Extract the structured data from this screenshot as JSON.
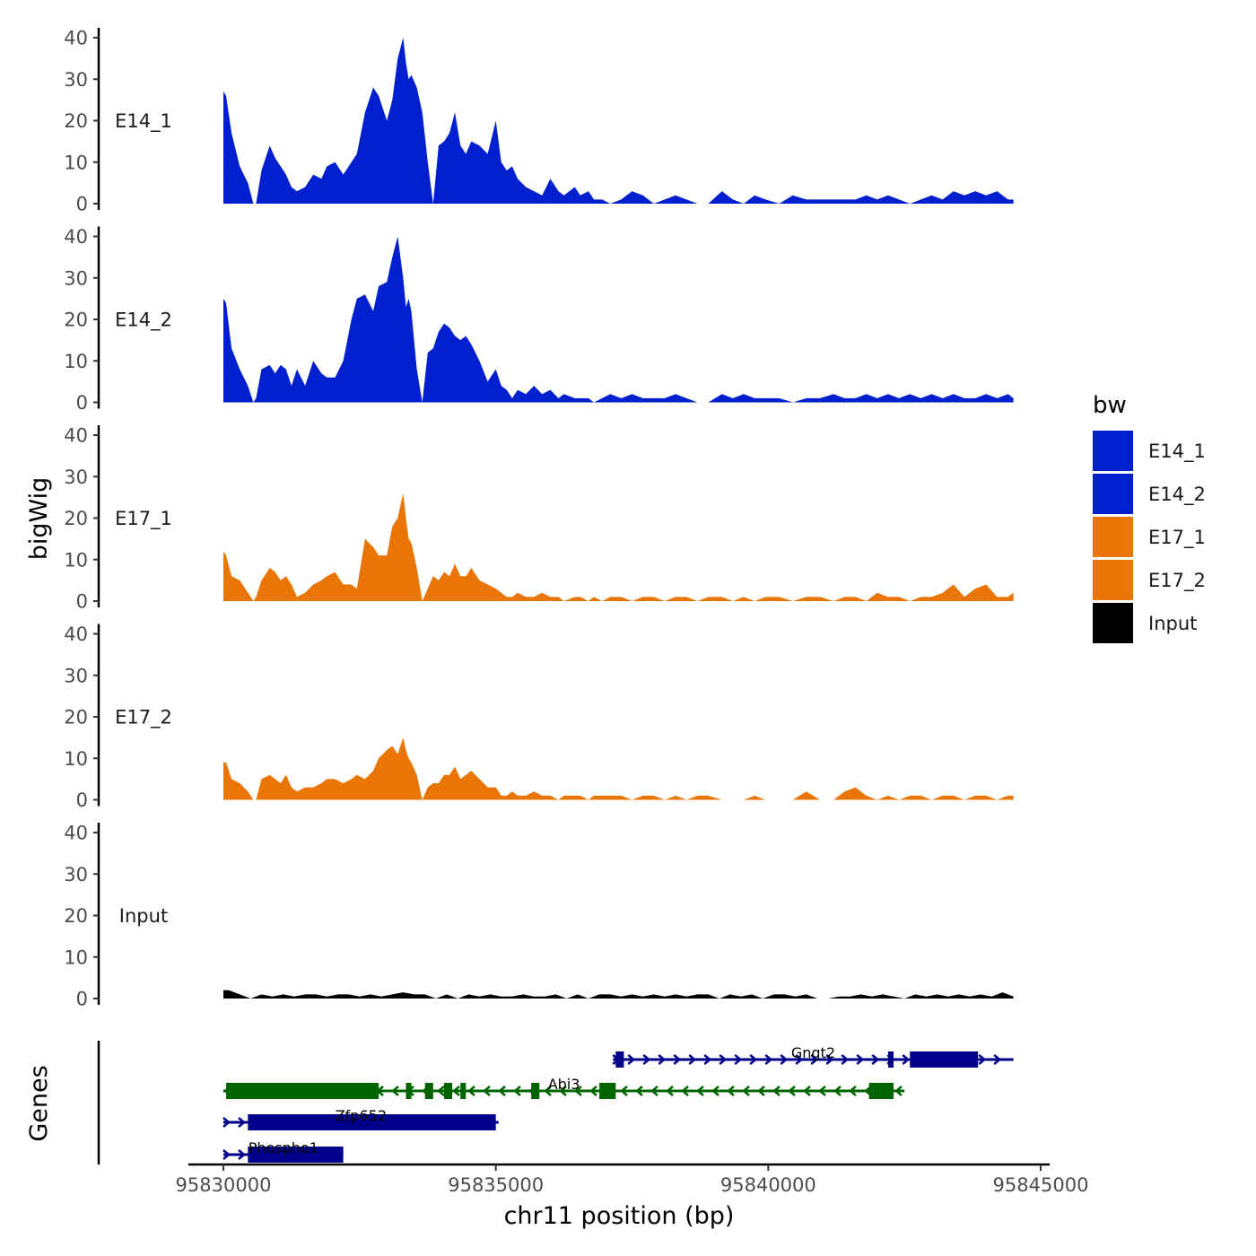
{
  "chart_data": {
    "type": "area",
    "ylabel": "bigWig",
    "xlabel": "chr11 position (bp)",
    "genes_label": "Genes",
    "ylim": [
      0,
      40
    ],
    "y_ticks": [
      "0",
      "10",
      "20",
      "30",
      "40"
    ],
    "xlim": [
      95829000,
      95845000
    ],
    "x_ticks": [
      95830000,
      95835000,
      95840000,
      95845000
    ],
    "x_tick_labels": [
      "95830000",
      "95835000",
      "95840000",
      "95845000"
    ],
    "legend": {
      "title": "bw",
      "position": "right",
      "entries": [
        {
          "label": "E14_1",
          "color": "#0020D0"
        },
        {
          "label": "E14_2",
          "color": "#0020D0"
        },
        {
          "label": "E17_1",
          "color": "#E87504"
        },
        {
          "label": "E17_2",
          "color": "#E87504"
        },
        {
          "label": "Input",
          "color": "#000000"
        }
      ]
    },
    "tracks": [
      {
        "name": "E14_1",
        "color": "#0020D0",
        "x": [
          95830000,
          95830050,
          95830150,
          95830300,
          95830450,
          95830550,
          95830600,
          95830700,
          95830850,
          95830950,
          95831050,
          95831150,
          95831250,
          95831350,
          95831500,
          95831650,
          95831800,
          95831900,
          95832050,
          95832200,
          95832350,
          95832450,
          95832600,
          95832750,
          95832850,
          95833000,
          95833100,
          95833200,
          95833300,
          95833350,
          95833400,
          95833450,
          95833550,
          95833650,
          95833750,
          95833850,
          95833950,
          95834050,
          95834150,
          95834250,
          95834350,
          95834450,
          95834550,
          95834700,
          95834850,
          95835000,
          95835100,
          95835200,
          95835300,
          95835400,
          95835550,
          95835700,
          95835850,
          95836000,
          95836150,
          95836250,
          95836450,
          95836550,
          95836700,
          95836800,
          95836950,
          95837100,
          95837300,
          95837500,
          95837700,
          95837900,
          95838100,
          95838300,
          95838500,
          95838700,
          95838900,
          95839150,
          95839350,
          95839550,
          95839750,
          95839950,
          95840200,
          95840450,
          95840700,
          95840950,
          95841200,
          95841400,
          95841600,
          95841800,
          95842000,
          95842200,
          95842400,
          95842600,
          95842800,
          95843000,
          95843200,
          95843400,
          95843600,
          95843800,
          95844000,
          95844200,
          95844400,
          95844500
        ],
        "y": [
          27,
          26,
          17,
          9,
          5,
          0,
          0,
          8,
          14,
          11,
          9,
          7,
          4,
          3,
          4,
          7,
          6,
          9,
          10,
          7,
          10,
          12,
          22,
          28,
          26,
          20,
          25,
          35,
          40,
          34,
          30,
          31,
          28,
          22,
          10,
          0,
          14,
          15,
          17,
          22,
          14,
          12,
          15,
          14,
          12,
          20,
          10,
          8,
          9,
          6,
          4,
          3,
          2,
          6,
          3,
          2,
          4,
          2,
          3,
          1,
          1,
          0,
          1,
          3,
          2,
          0,
          1,
          2,
          1,
          0,
          0,
          3,
          1,
          0,
          2,
          1,
          0,
          2,
          1,
          1,
          1,
          1,
          1,
          2,
          1,
          2,
          1,
          0,
          1,
          2,
          1,
          3,
          2,
          3,
          2,
          3,
          1,
          1
        ]
      },
      {
        "name": "E14_2",
        "color": "#0020D0",
        "x": [
          95830000,
          95830050,
          95830150,
          95830300,
          95830450,
          95830550,
          95830600,
          95830700,
          95830850,
          95830950,
          95831050,
          95831150,
          95831250,
          95831350,
          95831500,
          95831650,
          95831800,
          95831900,
          95832050,
          95832200,
          95832350,
          95832450,
          95832600,
          95832750,
          95832850,
          95833000,
          95833100,
          95833200,
          95833300,
          95833350,
          95833400,
          95833450,
          95833550,
          95833650,
          95833750,
          95833850,
          95833950,
          95834050,
          95834150,
          95834250,
          95834350,
          95834450,
          95834550,
          95834700,
          95834850,
          95835000,
          95835100,
          95835200,
          95835300,
          95835400,
          95835550,
          95835700,
          95835850,
          95836000,
          95836150,
          95836250,
          95836450,
          95836550,
          95836700,
          95836800,
          95836950,
          95837100,
          95837300,
          95837500,
          95837700,
          95837900,
          95838100,
          95838300,
          95838500,
          95838700,
          95838900,
          95839150,
          95839350,
          95839550,
          95839750,
          95839950,
          95840200,
          95840450,
          95840700,
          95840950,
          95841200,
          95841400,
          95841600,
          95841800,
          95842000,
          95842200,
          95842400,
          95842600,
          95842800,
          95843000,
          95843200,
          95843400,
          95843600,
          95843800,
          95844000,
          95844200,
          95844400,
          95844500
        ],
        "y": [
          25,
          24,
          13,
          8,
          4,
          0,
          1,
          8,
          9,
          7,
          9,
          8,
          4,
          8,
          4,
          10,
          7,
          6,
          6,
          10,
          20,
          25,
          26,
          22,
          28,
          29,
          35,
          40,
          30,
          23,
          25,
          22,
          8,
          0,
          12,
          13,
          17,
          19,
          18,
          16,
          15,
          16,
          14,
          10,
          5,
          8,
          4,
          3,
          1,
          3,
          2,
          4,
          2,
          3,
          1,
          2,
          1,
          1,
          1,
          0,
          1,
          2,
          1,
          2,
          1,
          1,
          1,
          2,
          1,
          0,
          0,
          2,
          1,
          2,
          1,
          1,
          1,
          0,
          1,
          1,
          2,
          1,
          1,
          2,
          1,
          2,
          1,
          2,
          1,
          2,
          1,
          2,
          1,
          1,
          2,
          1,
          2,
          1
        ]
      },
      {
        "name": "E17_1",
        "color": "#E87504",
        "x": [
          95830000,
          95830050,
          95830150,
          95830300,
          95830450,
          95830550,
          95830600,
          95830700,
          95830850,
          95830950,
          95831050,
          95831150,
          95831250,
          95831350,
          95831500,
          95831650,
          95831800,
          95831900,
          95832050,
          95832200,
          95832350,
          95832450,
          95832600,
          95832750,
          95832850,
          95833000,
          95833100,
          95833200,
          95833300,
          95833350,
          95833400,
          95833450,
          95833550,
          95833650,
          95833750,
          95833850,
          95833950,
          95834050,
          95834150,
          95834250,
          95834350,
          95834450,
          95834550,
          95834700,
          95834850,
          95835000,
          95835100,
          95835200,
          95835300,
          95835400,
          95835550,
          95835700,
          95835850,
          95836000,
          95836150,
          95836250,
          95836450,
          95836550,
          95836700,
          95836800,
          95836950,
          95837100,
          95837300,
          95837500,
          95837700,
          95837900,
          95838100,
          95838300,
          95838500,
          95838700,
          95838900,
          95839150,
          95839350,
          95839550,
          95839750,
          95839950,
          95840200,
          95840450,
          95840700,
          95840950,
          95841200,
          95841400,
          95841600,
          95841800,
          95842000,
          95842200,
          95842400,
          95842600,
          95842800,
          95843000,
          95843200,
          95843400,
          95843600,
          95843800,
          95844000,
          95844200,
          95844400,
          95844500
        ],
        "y": [
          12,
          11,
          6,
          5,
          2,
          0,
          1,
          5,
          8,
          7,
          5,
          6,
          4,
          1,
          2,
          4,
          5,
          6,
          7,
          4,
          4,
          3,
          15,
          13,
          11,
          11,
          18,
          20,
          26,
          20,
          15,
          14,
          8,
          0,
          3,
          6,
          5,
          7,
          6,
          9,
          6,
          6,
          8,
          5,
          4,
          3,
          2,
          1,
          1,
          2,
          1,
          1,
          2,
          1,
          1,
          0,
          1,
          1,
          0,
          1,
          0,
          1,
          1,
          0,
          1,
          1,
          0,
          1,
          1,
          0,
          1,
          1,
          0,
          1,
          0,
          1,
          1,
          0,
          1,
          1,
          0,
          1,
          1,
          0,
          2,
          1,
          1,
          0,
          1,
          1,
          2,
          4,
          1,
          3,
          4,
          1,
          1,
          2
        ]
      },
      {
        "name": "E17_2",
        "color": "#E87504",
        "x": [
          95830000,
          95830050,
          95830150,
          95830300,
          95830450,
          95830550,
          95830600,
          95830700,
          95830850,
          95830950,
          95831050,
          95831150,
          95831250,
          95831350,
          95831500,
          95831650,
          95831800,
          95831900,
          95832050,
          95832200,
          95832350,
          95832450,
          95832600,
          95832750,
          95832850,
          95833000,
          95833100,
          95833200,
          95833300,
          95833350,
          95833400,
          95833450,
          95833550,
          95833650,
          95833750,
          95833850,
          95833950,
          95834050,
          95834150,
          95834250,
          95834350,
          95834450,
          95834550,
          95834700,
          95834850,
          95835000,
          95835100,
          95835200,
          95835300,
          95835400,
          95835550,
          95835700,
          95835850,
          95836000,
          95836150,
          95836250,
          95836450,
          95836550,
          95836700,
          95836800,
          95836950,
          95837100,
          95837300,
          95837500,
          95837700,
          95837900,
          95838100,
          95838300,
          95838500,
          95838700,
          95838900,
          95839150,
          95839350,
          95839550,
          95839750,
          95839950,
          95840200,
          95840450,
          95840700,
          95840950,
          95841200,
          95841400,
          95841600,
          95841800,
          95842000,
          95842200,
          95842400,
          95842600,
          95842800,
          95843000,
          95843200,
          95843400,
          95843600,
          95843800,
          95844000,
          95844200,
          95844400,
          95844500
        ],
        "y": [
          9,
          9,
          5,
          4,
          2,
          0,
          0,
          5,
          6,
          5,
          4,
          6,
          3,
          2,
          3,
          3,
          4,
          5,
          5,
          4,
          5,
          6,
          5,
          7,
          10,
          12,
          13,
          11,
          15,
          12,
          10,
          9,
          6,
          0,
          3,
          4,
          4,
          6,
          6,
          8,
          5,
          6,
          7,
          5,
          3,
          3,
          1,
          1,
          2,
          1,
          1,
          2,
          1,
          1,
          0,
          1,
          1,
          1,
          0,
          1,
          1,
          1,
          1,
          0,
          1,
          1,
          0,
          1,
          0,
          1,
          1,
          0,
          0,
          0,
          1,
          0,
          0,
          0,
          2,
          0,
          0,
          2,
          3,
          1,
          0,
          1,
          0,
          1,
          1,
          0,
          1,
          1,
          0,
          1,
          1,
          0,
          1,
          1
        ]
      },
      {
        "name": "Input",
        "color": "#000000",
        "x": [
          95830000,
          95830100,
          95830300,
          95830500,
          95830700,
          95830900,
          95831100,
          95831300,
          95831500,
          95831700,
          95831900,
          95832100,
          95832300,
          95832500,
          95832700,
          95832900,
          95833100,
          95833300,
          95833500,
          95833700,
          95833900,
          95834100,
          95834300,
          95834500,
          95834700,
          95834900,
          95835100,
          95835300,
          95835500,
          95835700,
          95835900,
          95836100,
          95836300,
          95836500,
          95836700,
          95836900,
          95837100,
          95837300,
          95837500,
          95837700,
          95837900,
          95838100,
          95838300,
          95838500,
          95838700,
          95838900,
          95839100,
          95839300,
          95839500,
          95839700,
          95839900,
          95840100,
          95840300,
          95840500,
          95840700,
          95840900,
          95841100,
          95841300,
          95841500,
          95841700,
          95841900,
          95842100,
          95842300,
          95842500,
          95842700,
          95842900,
          95843100,
          95843300,
          95843500,
          95843700,
          95843900,
          95844100,
          95844300,
          95844500
        ],
        "y": [
          2,
          2,
          1,
          0,
          1,
          0.5,
          1,
          0.5,
          1,
          1,
          0.5,
          1,
          1,
          0.5,
          1,
          0.5,
          1,
          1.5,
          1,
          1,
          0,
          1,
          0,
          1,
          0.5,
          1,
          0.5,
          0.5,
          1,
          0.5,
          0.5,
          1,
          0,
          1,
          0,
          1,
          1,
          0.5,
          1,
          0.5,
          1,
          0.5,
          1,
          0.5,
          1,
          1,
          0,
          1,
          0.5,
          1,
          0,
          1,
          1,
          0.5,
          1,
          0,
          0,
          0.5,
          0.5,
          1,
          0.5,
          1,
          0.5,
          0,
          1,
          0.5,
          1,
          0.5,
          1,
          0.5,
          1,
          0.5,
          1.5,
          0.5
        ]
      }
    ],
    "genes": [
      {
        "name": "Gngt2",
        "strand": "+",
        "color": "#00008B",
        "start": 95837150,
        "end": 95844500,
        "exons": [
          [
            95837200,
            95837350
          ],
          [
            95842200,
            95842300
          ],
          [
            95842600,
            95843850
          ]
        ]
      },
      {
        "name": "Abi3",
        "strand": "-",
        "color": "#006400",
        "start": 95830000,
        "end": 95842500,
        "exons": [
          [
            95830050,
            95832850
          ],
          [
            95833350,
            95833450
          ],
          [
            95833700,
            95833850
          ],
          [
            95834050,
            95834200
          ],
          [
            95834350,
            95834450
          ],
          [
            95835650,
            95835800
          ],
          [
            95836900,
            95837200
          ],
          [
            95841850,
            95842300
          ]
        ]
      },
      {
        "name": "Zfp652",
        "strand": "+",
        "color": "#00008B",
        "start": 95830000,
        "end": 95835050,
        "exons": [
          [
            95830450,
            95835000
          ]
        ]
      },
      {
        "name": "Phospho1",
        "strand": "+",
        "color": "#00008B",
        "start": 95830000,
        "end": 95832200,
        "exons": [
          [
            95830450,
            95832200
          ]
        ]
      }
    ]
  }
}
